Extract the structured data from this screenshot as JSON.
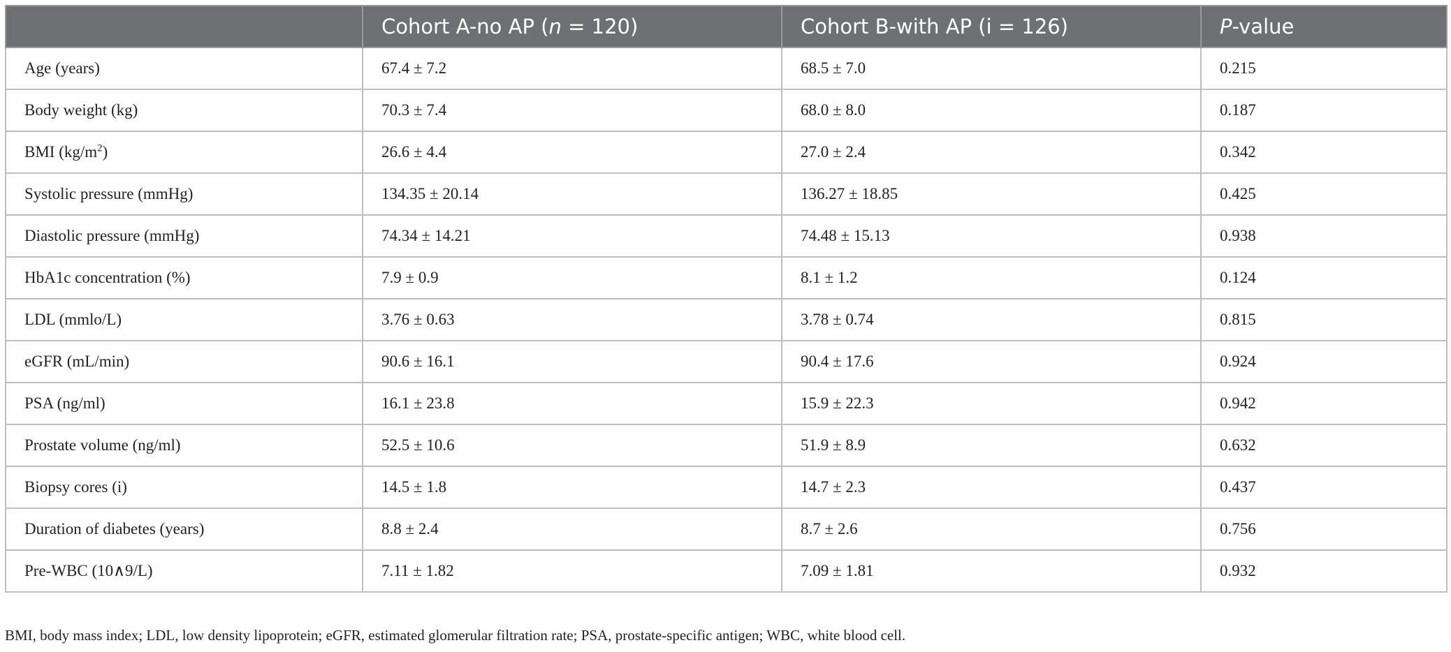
{
  "table": {
    "header": [
      [
        {
          "text": "Cohort A-no AP ("
        },
        {
          "text": "n",
          "italic": true
        },
        {
          "text": " = 120)"
        }
      ],
      [
        {
          "text": "Cohort B-with AP (i = 126)"
        }
      ],
      [
        {
          "text": "P",
          "italic": true
        },
        {
          "text": "-value"
        }
      ]
    ],
    "rows": [
      [
        [
          {
            "text": "Age (years)"
          }
        ],
        "67.4 ± 7.2",
        "68.5 ± 7.0",
        "0.215"
      ],
      [
        [
          {
            "text": "Body weight (kg)"
          }
        ],
        "70.3 ± 7.4",
        "68.0 ± 8.0",
        "0.187"
      ],
      [
        [
          {
            "text": "BMI (kg/m"
          },
          {
            "text": "2",
            "sup": true
          },
          {
            "text": ")"
          }
        ],
        "26.6 ± 4.4",
        "27.0 ± 2.4",
        "0.342"
      ],
      [
        [
          {
            "text": "Systolic pressure (mmHg)"
          }
        ],
        "134.35 ± 20.14",
        "136.27 ± 18.85",
        "0.425"
      ],
      [
        [
          {
            "text": "Diastolic pressure (mmHg)"
          }
        ],
        "74.34 ± 14.21",
        "74.48 ± 15.13",
        "0.938"
      ],
      [
        [
          {
            "text": "HbA1c concentration (%)"
          }
        ],
        "7.9 ± 0.9",
        "8.1 ± 1.2",
        "0.124"
      ],
      [
        [
          {
            "text": "LDL (mmlo/L)"
          }
        ],
        "3.76 ± 0.63",
        "3.78 ± 0.74",
        "0.815"
      ],
      [
        [
          {
            "text": "eGFR (mL/min)"
          }
        ],
        "90.6 ± 16.1",
        "90.4 ± 17.6",
        "0.924"
      ],
      [
        [
          {
            "text": "PSA (ng/ml)"
          }
        ],
        "16.1 ± 23.8",
        "15.9 ± 22.3",
        "0.942"
      ],
      [
        [
          {
            "text": "Prostate volume (ng/ml)"
          }
        ],
        "52.5 ± 10.6",
        "51.9 ± 8.9",
        "0.632"
      ],
      [
        [
          {
            "text": "Biopsy cores (i)"
          }
        ],
        "14.5 ± 1.8",
        "14.7 ± 2.3",
        "0.437"
      ],
      [
        [
          {
            "text": "Duration of diabetes (years)"
          }
        ],
        "8.8 ± 2.4",
        "8.7 ± 2.6",
        "0.756"
      ],
      [
        [
          {
            "text": "Pre-WBC (10∧9/L)"
          }
        ],
        "7.11 ± 1.82",
        "7.09 ± 1.81",
        "0.932"
      ]
    ]
  },
  "footnote": "BMI, body mass index; LDL, low density lipoprotein; eGFR, estimated glomerular filtration rate; PSA, prostate-specific antigen; WBC, white blood cell."
}
